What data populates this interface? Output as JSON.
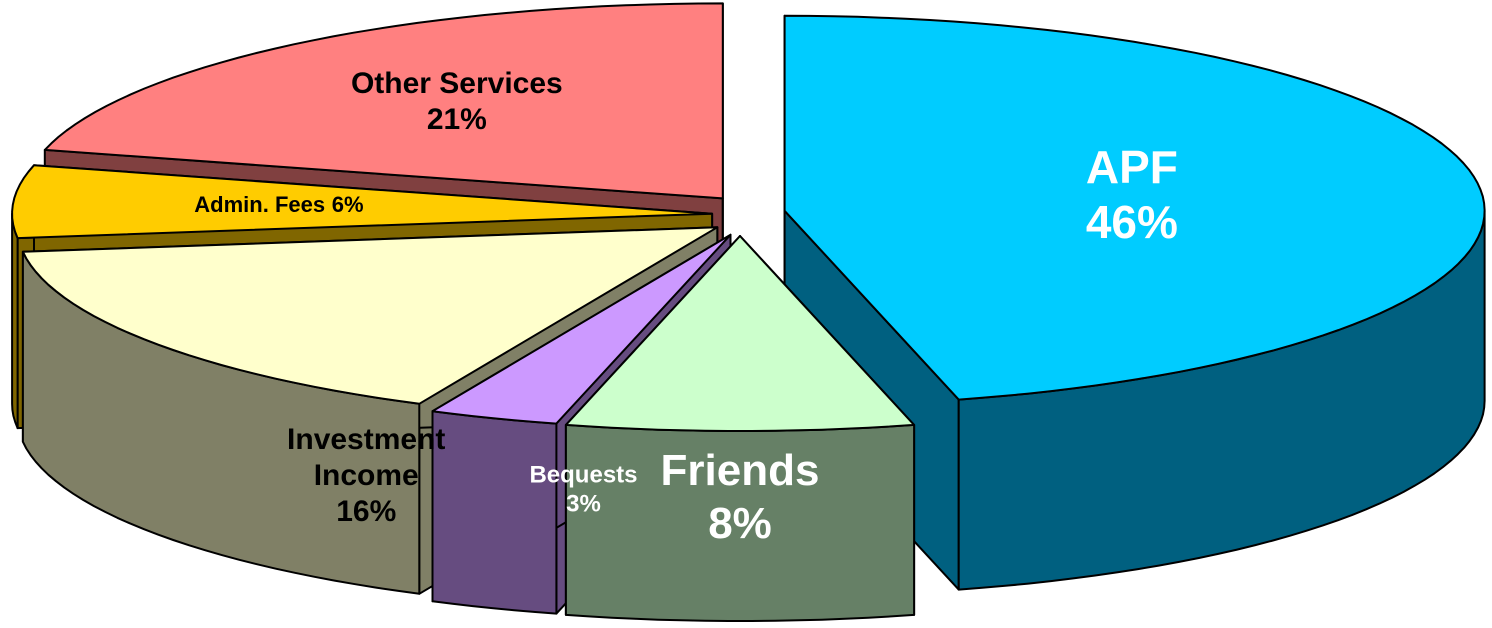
{
  "chart_data": {
    "type": "pie3d",
    "categories": [
      "APF",
      "Friends",
      "Bequests",
      "Investment Income",
      "Admin. Fees",
      "Other Services"
    ],
    "values": [
      46,
      8,
      3,
      16,
      6,
      21
    ],
    "value_labels": [
      "46%",
      "8%",
      "3%",
      "16%",
      "6%",
      "21%"
    ],
    "colors": [
      "#00ccff",
      "#ccffcc",
      "#cc99ff",
      "#ffffcc",
      "#ffcc00",
      "#ff8080"
    ],
    "side_colors": [
      "#006080",
      "#668066",
      "#664c80",
      "#808066",
      "#806600",
      "#804040"
    ],
    "label_colors": [
      "#ffffff",
      "#ffffff",
      "#ffffff",
      "#000000",
      "#000000",
      "#000000"
    ]
  }
}
